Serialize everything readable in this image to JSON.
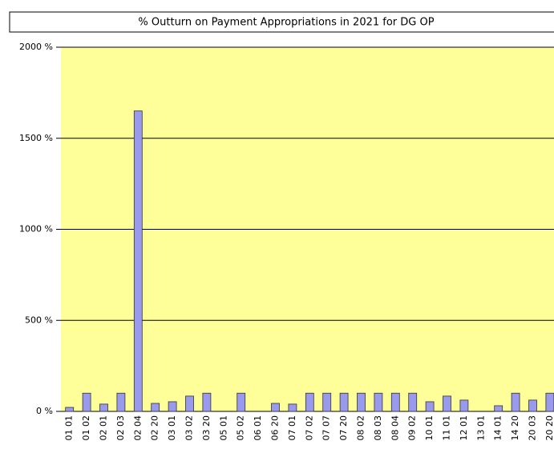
{
  "chart_data": {
    "type": "bar",
    "title": "% Outturn on Payment Appropriations in 2021 for DG OP",
    "categories": [
      "01 01",
      "01 02",
      "02 01",
      "02 03",
      "02 04",
      "02 20",
      "03 01",
      "03 02",
      "03 20",
      "05 01",
      "05 02",
      "06 01",
      "06 20",
      "07 01",
      "07 02",
      "07 07",
      "07 20",
      "08 02",
      "08 03",
      "08 04",
      "09 02",
      "10 01",
      "11 01",
      "12 01",
      "13 01",
      "14 01",
      "14 20",
      "20 03",
      "20 20"
    ],
    "values": [
      22,
      100,
      40,
      100,
      1650,
      44,
      53,
      84,
      100,
      0,
      100,
      0,
      44,
      40,
      100,
      100,
      100,
      100,
      100,
      100,
      100,
      53,
      84,
      62,
      0,
      31,
      100,
      62,
      100
    ],
    "color": "#9999ee",
    "ylim": [
      0,
      2000
    ],
    "yticks": [
      {
        "value": 0,
        "label": "0 %"
      },
      {
        "value": 500,
        "label": "500 %"
      },
      {
        "value": 1000,
        "label": "1000 %"
      },
      {
        "value": 1500,
        "label": "1500 %"
      },
      {
        "value": 2000,
        "label": "2000 %"
      }
    ],
    "grid": true
  }
}
